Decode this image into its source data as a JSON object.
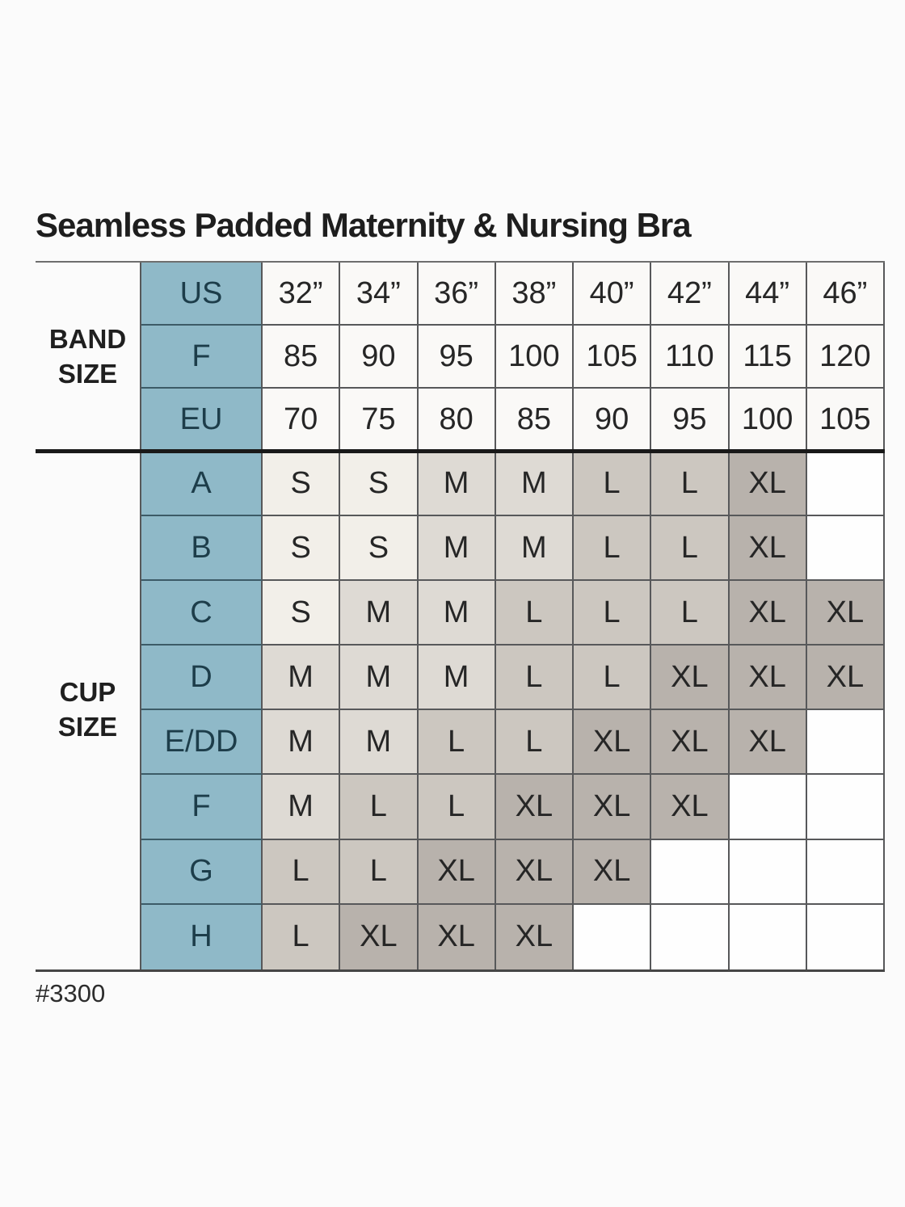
{
  "title": "Seamless Padded Maternity & Nursing Bra",
  "footnote": "#3300",
  "colors": {
    "key_column_blue": "#8fb9c8",
    "size_s_bg": "#f2efe9",
    "size_m_bg": "#dedad4",
    "size_l_bg": "#ccc7c0",
    "size_xl_bg": "#b8b2ac",
    "blank_bg": "#fefefe",
    "separator": "#191919"
  },
  "band_section": {
    "label": "BAND\nSIZE",
    "rows": [
      {
        "key": "US",
        "values": [
          "32”",
          "34”",
          "36”",
          "38”",
          "40”",
          "42”",
          "44”",
          "46”"
        ]
      },
      {
        "key": "F",
        "values": [
          "85",
          "90",
          "95",
          "100",
          "105",
          "110",
          "115",
          "120"
        ]
      },
      {
        "key": "EU",
        "values": [
          "70",
          "75",
          "80",
          "85",
          "90",
          "95",
          "100",
          "105"
        ]
      }
    ]
  },
  "cup_section": {
    "label": "CUP\nSIZE",
    "rows": [
      {
        "key": "A",
        "values": [
          "S",
          "S",
          "M",
          "M",
          "L",
          "L",
          "XL",
          ""
        ]
      },
      {
        "key": "B",
        "values": [
          "S",
          "S",
          "M",
          "M",
          "L",
          "L",
          "XL",
          ""
        ]
      },
      {
        "key": "C",
        "values": [
          "S",
          "M",
          "M",
          "L",
          "L",
          "L",
          "XL",
          "XL"
        ]
      },
      {
        "key": "D",
        "values": [
          "M",
          "M",
          "M",
          "L",
          "L",
          "XL",
          "XL",
          "XL"
        ]
      },
      {
        "key": "E/DD",
        "values": [
          "M",
          "M",
          "L",
          "L",
          "XL",
          "XL",
          "XL",
          ""
        ]
      },
      {
        "key": "F",
        "values": [
          "M",
          "L",
          "L",
          "XL",
          "XL",
          "XL",
          "",
          ""
        ]
      },
      {
        "key": "G",
        "values": [
          "L",
          "L",
          "XL",
          "XL",
          "XL",
          "",
          "",
          ""
        ]
      },
      {
        "key": "H",
        "values": [
          "L",
          "XL",
          "XL",
          "XL",
          "",
          "",
          "",
          ""
        ]
      }
    ]
  }
}
